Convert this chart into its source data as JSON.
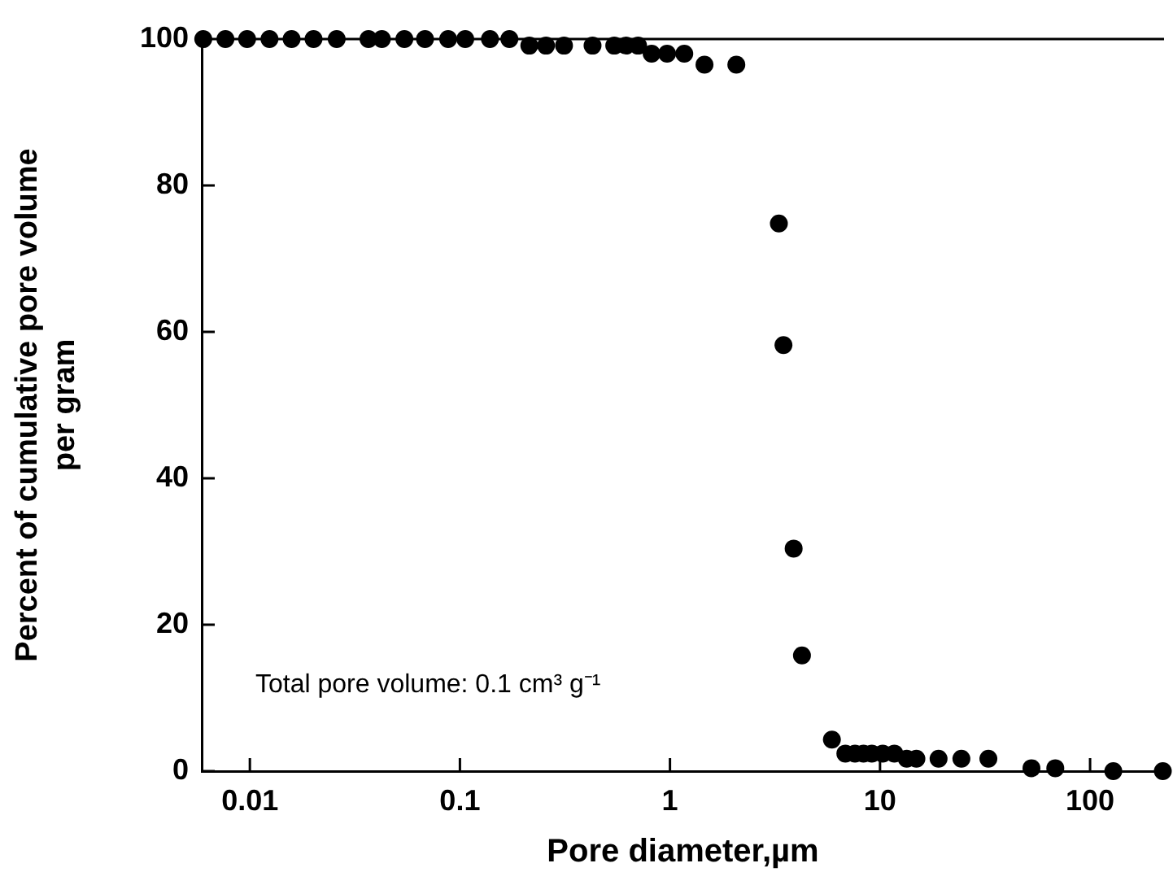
{
  "chart_data": {
    "type": "scatter",
    "xlabel": "Pore diameter,µm",
    "ylabel": "Percent of cumulative pore volume\nper gram",
    "log": "x",
    "xlim": [
      0.0059,
      225
    ],
    "xticks": [
      0.01,
      0.1,
      1,
      10,
      100
    ],
    "ylim": [
      0,
      100
    ],
    "yticks": [
      0,
      20,
      40,
      60,
      80,
      100
    ],
    "grid": false,
    "legend": false,
    "marker": "circle",
    "annotations": [
      "Total pore volume: 0.1 cm³ g⁻¹"
    ],
    "series": [
      {
        "color": "#000000",
        "x": [
          0.006,
          0.00765,
          0.0097,
          0.0124,
          0.0158,
          0.0201,
          0.0259,
          0.0367,
          0.0425,
          0.0544,
          0.0682,
          0.0879,
          0.106,
          0.139,
          0.172,
          0.214,
          0.257,
          0.313,
          0.428,
          0.543,
          0.617,
          0.705,
          0.818,
          0.969,
          1.17,
          1.46,
          2.07,
          3.3,
          3.47,
          3.88,
          4.25,
          5.9,
          6.84,
          7.6,
          8.34,
          9.14,
          10.3,
          11.7,
          13.4,
          14.9,
          19,
          24.4,
          32.8,
          52.6,
          68.3,
          129,
          222
        ],
        "values": [
          100,
          100,
          100,
          100,
          100,
          100,
          100,
          100,
          100,
          100,
          100,
          100,
          100,
          100,
          100,
          99.1,
          99.1,
          99.1,
          99.1,
          99.1,
          99.1,
          99.1,
          98,
          98,
          98,
          96.5,
          96.5,
          74.8,
          58.2,
          30.4,
          15.8,
          4.3,
          2.4,
          2.4,
          2.4,
          2.4,
          2.4,
          2.4,
          1.7,
          1.7,
          1.7,
          1.7,
          1.7,
          0.4,
          0.4,
          0,
          0
        ]
      }
    ]
  }
}
